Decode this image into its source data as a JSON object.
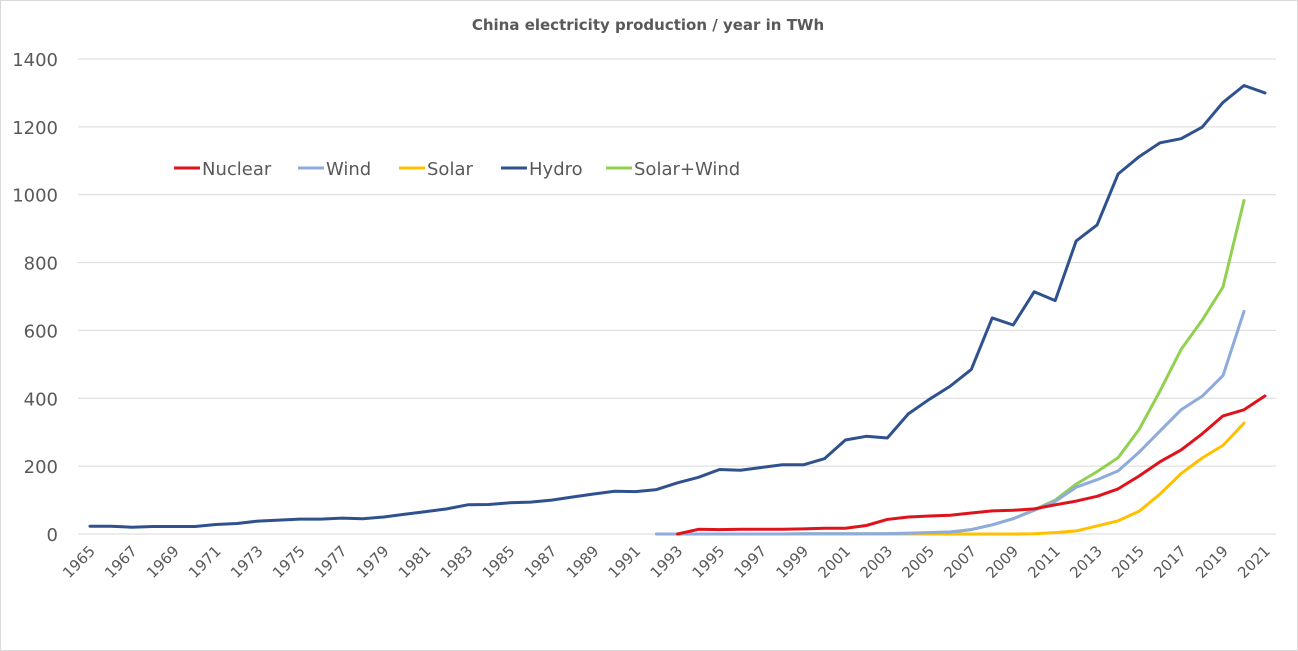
{
  "chart_data": {
    "type": "line",
    "title": "China electricity production  / year in TWh",
    "xlabel": "",
    "ylabel": "",
    "ylim": [
      0,
      1400
    ],
    "yticks": [
      0,
      200,
      400,
      600,
      800,
      1000,
      1200,
      1400
    ],
    "xlim": [
      1965,
      2021
    ],
    "xtick_labels": [
      "1965",
      "1967",
      "1969",
      "1971",
      "1973",
      "1975",
      "1977",
      "1979",
      "1981",
      "1983",
      "1985",
      "1987",
      "1989",
      "1991",
      "1993",
      "1995",
      "1997",
      "1999",
      "2001",
      "2003",
      "2005",
      "2007",
      "2009",
      "2011",
      "2013",
      "2015",
      "2017",
      "2019",
      "2021"
    ],
    "grid": true,
    "legend_position": "upper-left inside",
    "series": [
      {
        "name": "Nuclear",
        "color": "#e0121b",
        "start_year": 1993,
        "values": [
          0,
          14,
          13,
          14,
          14,
          14,
          15,
          17,
          17,
          25,
          43,
          50,
          53,
          55,
          62,
          68,
          70,
          74,
          86,
          97,
          111,
          133,
          171,
          213,
          248,
          295,
          348,
          366,
          407
        ]
      },
      {
        "name": "Wind",
        "color": "#8faadc",
        "start_year": 1992,
        "values": [
          0,
          0,
          0,
          0,
          0,
          0,
          0,
          1,
          1,
          1,
          1,
          1,
          2,
          4,
          6,
          13,
          27,
          45,
          70,
          96,
          138,
          160,
          186,
          241,
          304,
          366,
          406,
          467,
          656
        ]
      },
      {
        "name": "Solar",
        "color": "#ffc000",
        "start_year": 1992,
        "values": [
          0,
          0,
          0,
          0,
          0,
          0,
          0,
          0,
          0,
          0,
          0,
          0,
          0,
          0,
          0,
          0,
          0,
          0,
          1,
          4,
          9,
          24,
          39,
          67,
          118,
          178,
          224,
          261,
          327
        ]
      },
      {
        "name": "Hydro",
        "color": "#2f528f",
        "start_year": 1965,
        "values": [
          23,
          23,
          20,
          22,
          22,
          22,
          28,
          31,
          38,
          41,
          44,
          44,
          47,
          45,
          50,
          58,
          66,
          74,
          86,
          87,
          92,
          94,
          100,
          109,
          118,
          126,
          125,
          131,
          151,
          167,
          190,
          188,
          196,
          204,
          204,
          222,
          277,
          288,
          283,
          354,
          397,
          436,
          485,
          637,
          616,
          714,
          688,
          864,
          911,
          1061,
          1112,
          1153,
          1165,
          1199,
          1272,
          1322,
          1300
        ]
      },
      {
        "name": "Solar+Wind",
        "color": "#92d050",
        "start_year": 1992,
        "values": [
          0,
          0,
          0,
          0,
          0,
          0,
          0,
          1,
          1,
          1,
          1,
          1,
          2,
          4,
          6,
          13,
          27,
          45,
          71,
          100,
          147,
          184,
          225,
          308,
          422,
          544,
          630,
          728,
          983
        ]
      }
    ]
  }
}
